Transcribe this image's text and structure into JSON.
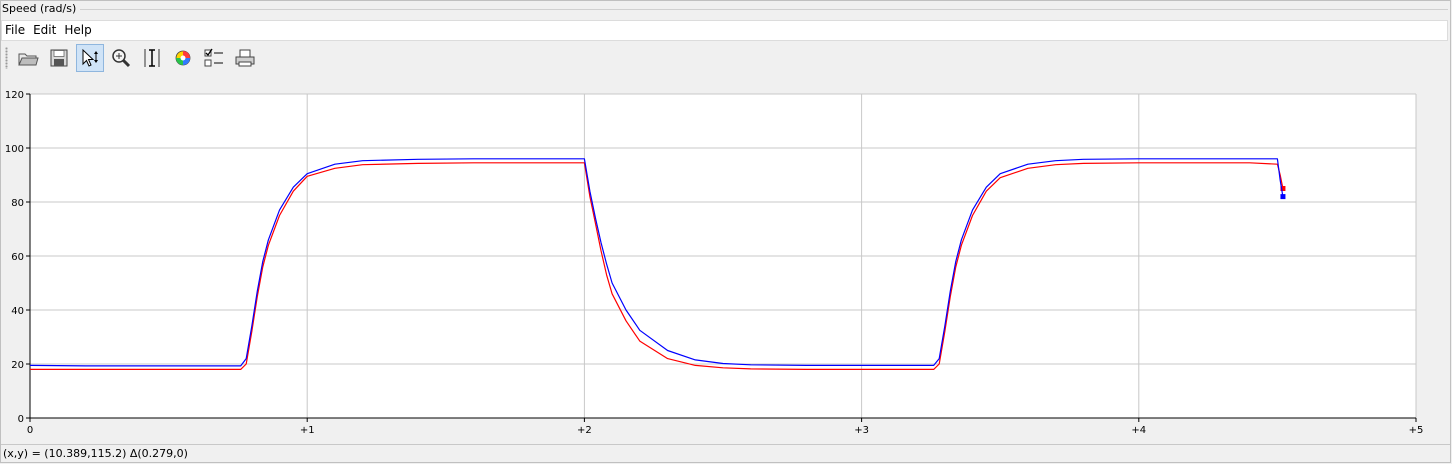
{
  "window": {
    "title": "Speed (rad/s)"
  },
  "menu": {
    "items": [
      "File",
      "Edit",
      "Help"
    ]
  },
  "toolbar": {
    "buttons": [
      {
        "icon": "open-folder-icon",
        "active": false
      },
      {
        "icon": "save-icon",
        "active": false
      },
      {
        "icon": "pointer-pan-icon",
        "active": true
      },
      {
        "icon": "zoom-icon",
        "active": false
      },
      {
        "icon": "vertical-cursor-icon",
        "active": false
      },
      {
        "icon": "color-wheel-icon",
        "active": false
      },
      {
        "icon": "legend-checklist-icon",
        "active": false
      },
      {
        "icon": "print-icon",
        "active": false
      }
    ]
  },
  "status": {
    "text": "(x,y) = (10.389,115.2) Δ(0.279,0)"
  },
  "chart_data": {
    "type": "line",
    "title": "",
    "xlabel": "",
    "ylabel": "",
    "xlim": [
      0,
      5
    ],
    "ylim": [
      0,
      120
    ],
    "grid": true,
    "x_ticks": [
      0,
      1,
      2,
      3,
      4,
      5
    ],
    "x_tick_labels": [
      "0",
      "+1",
      "+2",
      "+3",
      "+4",
      "+5"
    ],
    "y_ticks": [
      0,
      20,
      40,
      60,
      80,
      100,
      120
    ],
    "y_tick_labels": [
      "0",
      "20",
      "40",
      "60",
      "80",
      "100",
      "120"
    ],
    "series": [
      {
        "color": "#ff0000",
        "end_marker": true,
        "x": [
          0,
          0.2,
          0.4,
          0.6,
          0.76,
          0.78,
          0.8,
          0.82,
          0.84,
          0.86,
          0.9,
          0.95,
          1.0,
          1.1,
          1.2,
          1.4,
          1.6,
          1.8,
          2.0,
          2.02,
          2.04,
          2.06,
          2.08,
          2.1,
          2.15,
          2.2,
          2.3,
          2.4,
          2.5,
          2.6,
          2.8,
          3.0,
          3.2,
          3.26,
          3.28,
          3.3,
          3.32,
          3.34,
          3.36,
          3.4,
          3.45,
          3.5,
          3.6,
          3.7,
          3.8,
          4.0,
          4.2,
          4.4,
          4.5,
          4.51,
          4.52
        ],
        "y": [
          18,
          18,
          18,
          18,
          18,
          20,
          32,
          45,
          56,
          64,
          75,
          84,
          89.5,
          92.5,
          93.8,
          94.3,
          94.5,
          94.5,
          94.5,
          82,
          72,
          62,
          53,
          46,
          36,
          28.5,
          22,
          19.5,
          18.6,
          18.2,
          18,
          18,
          18,
          18,
          20,
          32,
          45,
          56,
          64,
          75,
          84,
          89,
          92.5,
          93.8,
          94.3,
          94.5,
          94.5,
          94.5,
          94,
          90,
          85
        ]
      },
      {
        "color": "#0000ff",
        "end_marker": true,
        "x": [
          0,
          0.2,
          0.4,
          0.6,
          0.76,
          0.78,
          0.8,
          0.82,
          0.84,
          0.86,
          0.9,
          0.95,
          1.0,
          1.1,
          1.2,
          1.4,
          1.6,
          1.8,
          2.0,
          2.02,
          2.04,
          2.06,
          2.08,
          2.1,
          2.15,
          2.2,
          2.3,
          2.4,
          2.5,
          2.6,
          2.8,
          3.0,
          3.2,
          3.26,
          3.28,
          3.3,
          3.32,
          3.34,
          3.36,
          3.4,
          3.45,
          3.5,
          3.6,
          3.7,
          3.8,
          4.0,
          4.2,
          4.4,
          4.5,
          4.51,
          4.52
        ],
        "y": [
          19.5,
          19.3,
          19.3,
          19.3,
          19.3,
          22,
          34,
          47,
          58,
          66,
          77,
          85.5,
          90.5,
          94,
          95.3,
          95.8,
          96,
          96,
          96,
          84,
          74,
          65,
          57,
          50,
          40,
          32.5,
          25,
          21.5,
          20.2,
          19.7,
          19.5,
          19.5,
          19.5,
          19.5,
          22,
          34,
          47,
          58,
          66,
          77,
          85.5,
          90.5,
          94,
          95.3,
          95.8,
          96,
          96,
          96,
          96,
          88,
          82
        ]
      }
    ]
  }
}
